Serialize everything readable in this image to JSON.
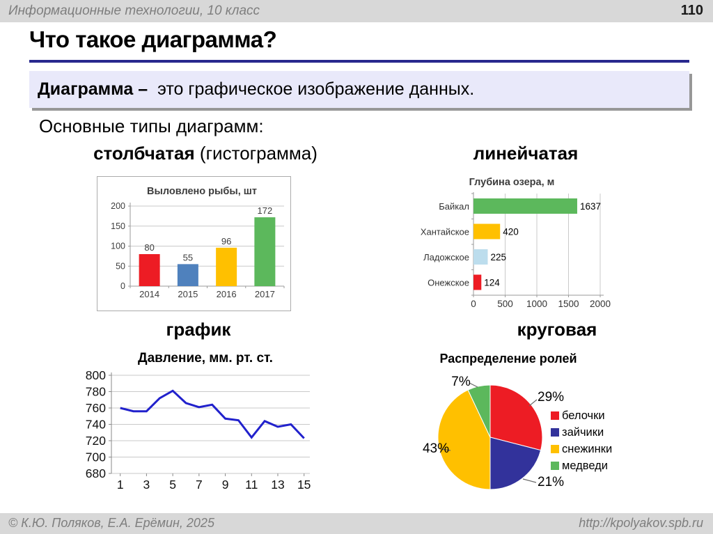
{
  "header": {
    "course": "Информационные технологии, 10 класс",
    "page": "110"
  },
  "title": "Что такое диаграмма?",
  "definition": {
    "term": "Диаграмма",
    "dash": "–",
    "text": "это графическое изображение данных."
  },
  "subtitle": "Основные типы диаграмм:",
  "type_labels": {
    "bar_bold": "столбчатая",
    "bar_note": "(гистограмма)",
    "hbar": "линейчатая",
    "line": "график",
    "pie": "круговая"
  },
  "footer": {
    "copyright": "© К.Ю. Поляков, Е.А. Ерёмин, 2025",
    "site": "http://kpolyakov.spb.ru"
  },
  "colors": {
    "accent_rule": "#28288e",
    "definition_box_bg": "#e9e9fa",
    "header_bar_bg": "#d8d8d8",
    "red": "#ed1c24",
    "blue": "#4f81bd",
    "yellow": "#ffc000",
    "green": "#5cb85c",
    "pale_blue": "#bcdded",
    "navy": "#32329b",
    "line_blue": "#2121cc"
  },
  "chart_data": [
    {
      "type": "bar",
      "title": "Выловлено рыбы, шт",
      "categories": [
        "2014",
        "2015",
        "2016",
        "2017"
      ],
      "values": [
        80,
        55,
        96,
        172
      ],
      "colors": [
        "#ed1c24",
        "#4f81bd",
        "#ffc000",
        "#5cb85c"
      ],
      "ylim": [
        0,
        200
      ],
      "ytick_step": 50,
      "grid": true,
      "data_labels": true
    },
    {
      "type": "hbar",
      "title": "Глубина озера, м",
      "categories": [
        "Байкал",
        "Хантайское",
        "Ладожское",
        "Онежское"
      ],
      "values": [
        1637,
        420,
        225,
        124
      ],
      "colors": [
        "#5cb85c",
        "#ffc000",
        "#bcdded",
        "#ed1c24"
      ],
      "xlim": [
        0,
        2000
      ],
      "xticks": [
        0,
        500,
        1000,
        1500,
        2000
      ],
      "grid": true,
      "data_labels": true
    },
    {
      "type": "line",
      "title": "Давление, мм. рт. ст.",
      "x": [
        1,
        2,
        3,
        4,
        5,
        6,
        7,
        8,
        9,
        10,
        11,
        12,
        13,
        14,
        15
      ],
      "values": [
        760,
        756,
        756,
        772,
        781,
        766,
        761,
        764,
        747,
        745,
        724,
        744,
        737,
        740,
        723
      ],
      "ylim": [
        680,
        800
      ],
      "ytick_step": 20,
      "xticks": [
        1,
        3,
        5,
        7,
        9,
        11,
        13,
        15
      ],
      "line_color": "#2121cc",
      "grid": true
    },
    {
      "type": "pie",
      "title": "Распределение ролей",
      "labels": [
        "белочки",
        "зайчики",
        "снежинки",
        "медведи"
      ],
      "values": [
        29,
        21,
        43,
        7
      ],
      "percent_labels": [
        "29%",
        "21%",
        "43%",
        "7%"
      ],
      "colors": [
        "#ed1c24",
        "#32329b",
        "#ffc000",
        "#5cb85c"
      ],
      "legend_position": "right",
      "start_angle_deg": 0,
      "direction": "clockwise"
    }
  ]
}
